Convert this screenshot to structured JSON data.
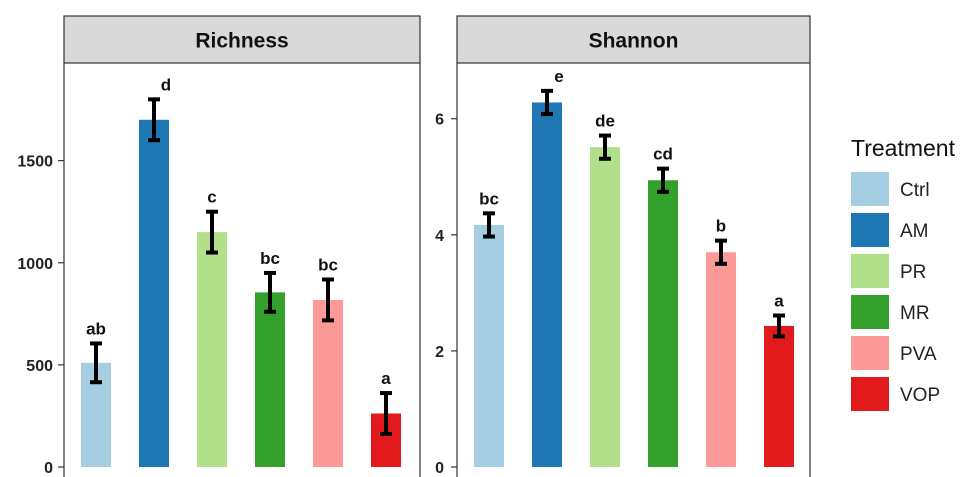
{
  "chart_data": [
    {
      "type": "bar",
      "title": "Richness",
      "categories": [
        "Ctrl",
        "AM",
        "PR",
        "MR",
        "PVA",
        "VOP"
      ],
      "values": [
        510,
        1700,
        1150,
        855,
        818,
        262
      ],
      "error": [
        95,
        100,
        100,
        95,
        100,
        100
      ],
      "letters": [
        "ab",
        "d",
        "c",
        "bc",
        "bc",
        "a"
      ],
      "ylim": [
        0,
        1978
      ],
      "yticks": [
        0,
        500,
        1000,
        1500
      ],
      "ytick_labels": [
        "0",
        "500",
        "1000",
        "1500"
      ],
      "grid": false
    },
    {
      "type": "bar",
      "title": "Shannon",
      "categories": [
        "Ctrl",
        "AM",
        "PR",
        "MR",
        "PVA",
        "VOP"
      ],
      "values": [
        4.17,
        6.28,
        5.51,
        4.94,
        3.7,
        2.43
      ],
      "error": [
        0.2,
        0.2,
        0.2,
        0.2,
        0.2,
        0.18
      ],
      "letters": [
        "bc",
        "e",
        "de",
        "cd",
        "b",
        "a"
      ],
      "ylim": [
        0,
        6.96
      ],
      "yticks": [
        0,
        2,
        4,
        6
      ],
      "ytick_labels": [
        "0",
        "2",
        "4",
        "6"
      ],
      "grid": false
    }
  ],
  "legend": {
    "title": "Treatment",
    "items": [
      {
        "label": "Ctrl",
        "color": "#A6CEE3"
      },
      {
        "label": "AM",
        "color": "#1F78B4"
      },
      {
        "label": "PR",
        "color": "#B2DF8A"
      },
      {
        "label": "MR",
        "color": "#33A02C"
      },
      {
        "label": "PVA",
        "color": "#FB9A99"
      },
      {
        "label": "VOP",
        "color": "#E31A1C"
      }
    ]
  },
  "colors": {
    "strip_fill": "#D9D9D9",
    "panel_border": "#333333",
    "error_bar": "#000000"
  }
}
